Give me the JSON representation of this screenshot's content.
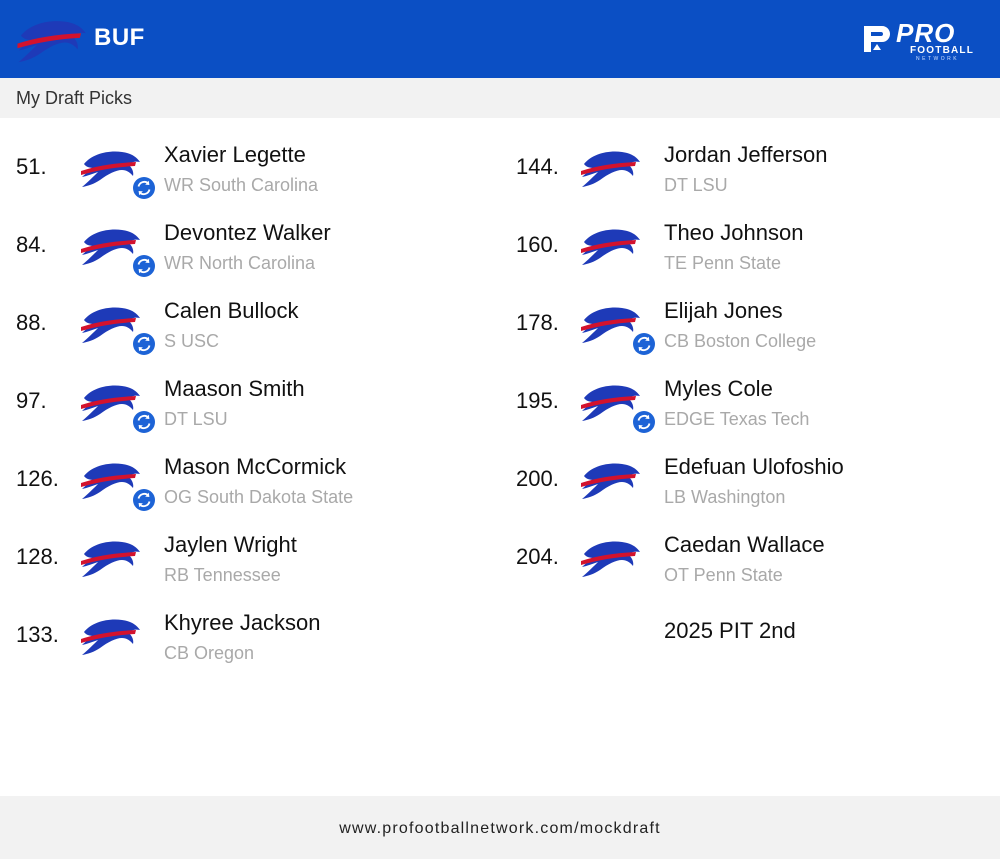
{
  "header": {
    "team_abbr": "BUF",
    "brand": {
      "pro": "PRO",
      "football": "FOOTBALL",
      "network": "NETWORK"
    },
    "background_color": "#0b4fc4"
  },
  "subheader": {
    "label": "My Draft Picks"
  },
  "picks_left": [
    {
      "number": "51.",
      "name": "Xavier Legette",
      "info": "WR South Carolina",
      "traded": true
    },
    {
      "number": "84.",
      "name": "Devontez Walker",
      "info": "WR North Carolina",
      "traded": true
    },
    {
      "number": "88.",
      "name": "Calen Bullock",
      "info": "S USC",
      "traded": true
    },
    {
      "number": "97.",
      "name": "Maason Smith",
      "info": "DT LSU",
      "traded": true
    },
    {
      "number": "126.",
      "name": "Mason McCormick",
      "info": "OG South Dakota State",
      "traded": true
    },
    {
      "number": "128.",
      "name": "Jaylen Wright",
      "info": "RB Tennessee",
      "traded": false
    },
    {
      "number": "133.",
      "name": "Khyree Jackson",
      "info": "CB Oregon",
      "traded": false
    }
  ],
  "picks_right": [
    {
      "number": "144.",
      "name": "Jordan Jefferson",
      "info": "DT LSU",
      "traded": false
    },
    {
      "number": "160.",
      "name": "Theo Johnson",
      "info": "TE Penn State",
      "traded": false
    },
    {
      "number": "178.",
      "name": "Elijah Jones",
      "info": "CB Boston College",
      "traded": true
    },
    {
      "number": "195.",
      "name": "Myles Cole",
      "info": "EDGE Texas Tech",
      "traded": true
    },
    {
      "number": "200.",
      "name": "Edefuan Ulofoshio",
      "info": "LB Washington",
      "traded": false
    },
    {
      "number": "204.",
      "name": "Caedan Wallace",
      "info": "OT Penn State",
      "traded": false
    }
  ],
  "future_pick": "2025 PIT 2nd",
  "footer": {
    "url": "www.profootballnetwork.com/mockdraft"
  },
  "icons": {
    "team_logo": "bills-logo-icon",
    "trade": "trade-swap-icon",
    "brand": "pfn-logo-icon"
  },
  "colors": {
    "bills_blue": "#1e3ab8",
    "bills_red": "#d3122d",
    "trade_blue": "#1d63d6",
    "meta_gray": "#a9a9a9"
  }
}
